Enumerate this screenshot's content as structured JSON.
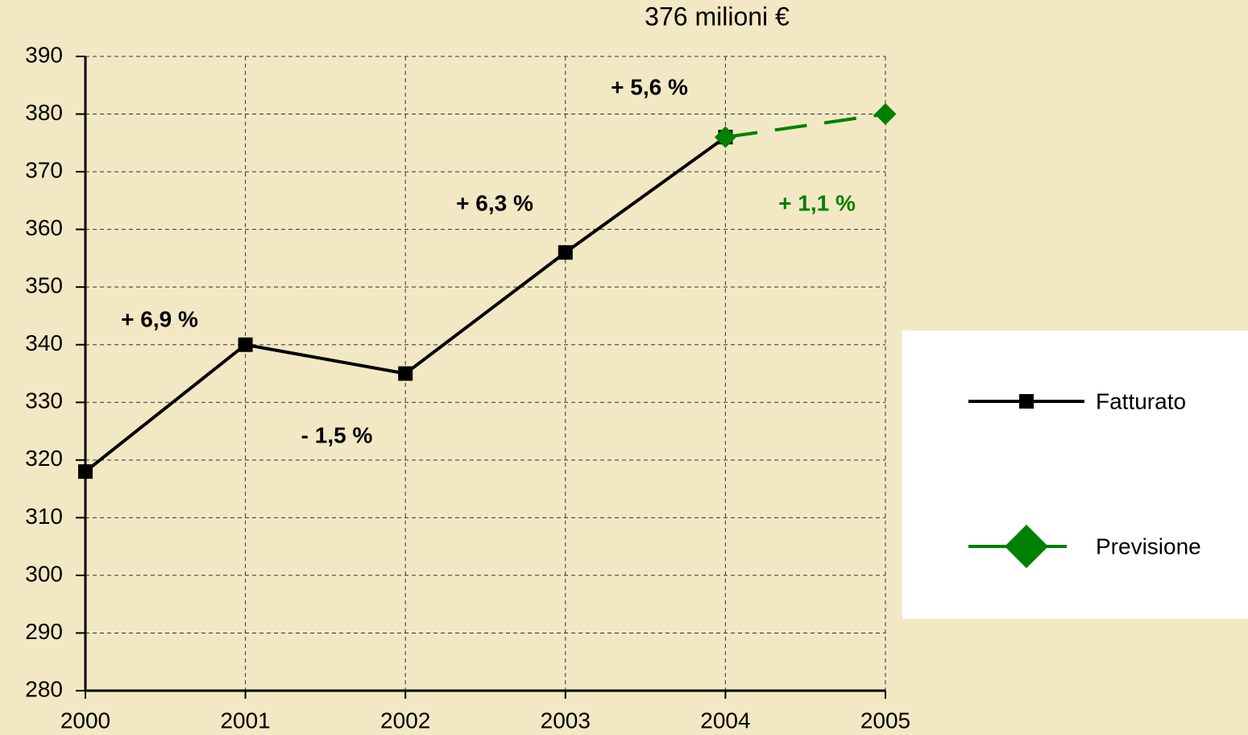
{
  "chart_data": {
    "type": "line",
    "title": "376 milioni €",
    "categories": [
      "2000",
      "2001",
      "2002",
      "2003",
      "2004",
      "2005"
    ],
    "series": [
      {
        "name": "Fatturato",
        "color": "#000000",
        "marker": "square",
        "dashed": false,
        "values": [
          318,
          340,
          335,
          356,
          376,
          null
        ]
      },
      {
        "name": "Previsione",
        "color": "#008000",
        "marker": "diamond",
        "dashed": true,
        "values": [
          null,
          null,
          null,
          null,
          376,
          380
        ]
      }
    ],
    "annotations": [
      {
        "text": "+ 6,9 %",
        "color": "#000000"
      },
      {
        "text": "- 1,5 %",
        "color": "#000000"
      },
      {
        "text": "+ 6,3 %",
        "color": "#000000"
      },
      {
        "text": "+ 5,6 %",
        "color": "#000000"
      },
      {
        "text": "+ 1,1 %",
        "color": "#008000"
      }
    ],
    "ylim": [
      280,
      390
    ],
    "yticks": [
      280,
      290,
      300,
      310,
      320,
      330,
      340,
      350,
      360,
      370,
      380,
      390
    ],
    "grid": true,
    "legend": "right"
  }
}
